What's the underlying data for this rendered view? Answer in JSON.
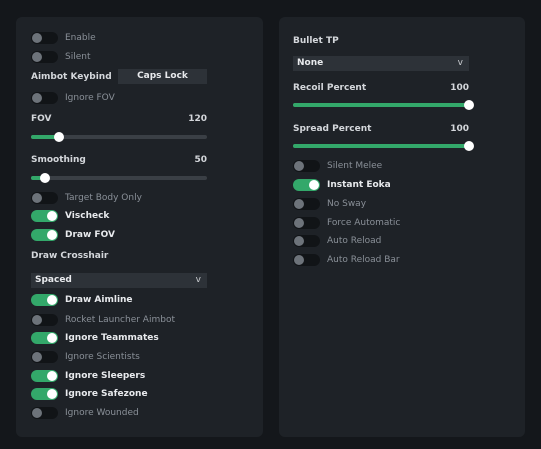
{
  "left": {
    "enable_label": "Enable",
    "silent_label": "Silent",
    "aimbot_keybind_label": "Aimbot Keybind",
    "aimbot_keybind_value": "Caps Lock",
    "ignore_fov_label": "Ignore FOV",
    "fov": {
      "label": "FOV",
      "value_text": "120",
      "fraction": 0.16
    },
    "smoothing": {
      "label": "Smoothing",
      "value_text": "50",
      "fraction": 0.08
    },
    "target_body_only_label": "Target Body Only",
    "vischeck_label": "Vischeck",
    "draw_fov_label": "Draw FOV",
    "draw_crosshair_label": "Draw Crosshair",
    "crosshair_select_value": "Spaced",
    "draw_aimline_label": "Draw Aimline",
    "rocket_launcher_aimbot_label": "Rocket Launcher Aimbot",
    "ignore_teammates_label": "Ignore Teammates",
    "ignore_scientists_label": "Ignore Scientists",
    "ignore_sleepers_label": "Ignore Sleepers",
    "ignore_safezone_label": "Ignore Safezone",
    "ignore_wounded_label": "Ignore Wounded"
  },
  "right": {
    "bullet_tp_label": "Bullet TP",
    "bullet_tp_select_value": "None",
    "recoil": {
      "label": "Recoil Percent",
      "value_text": "100",
      "fraction": 1.0
    },
    "spread": {
      "label": "Spread Percent",
      "value_text": "100",
      "fraction": 1.0
    },
    "silent_melee_label": "Silent Melee",
    "instant_eoka_label": "Instant Eoka",
    "no_sway_label": "No Sway",
    "force_automatic_label": "Force Automatic",
    "auto_reload_label": "Auto Reload",
    "auto_reload_bar_label": "Auto Reload Bar"
  },
  "chevron_glyph": "v",
  "colors": {
    "accent": "#33a86a",
    "panel": "#1e2227",
    "background": "#14171b"
  }
}
